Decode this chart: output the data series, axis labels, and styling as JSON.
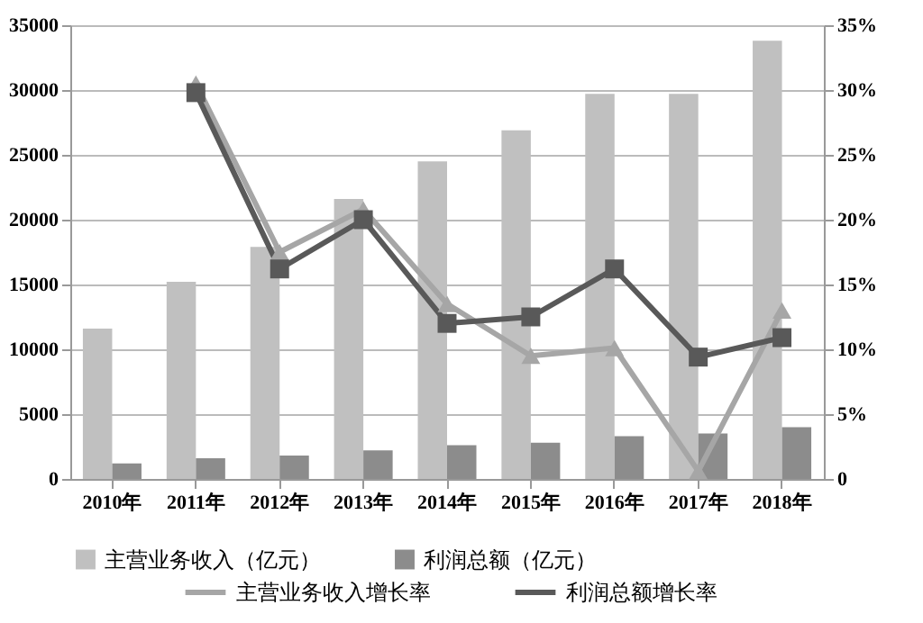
{
  "chart_data": {
    "type": "bar",
    "categories": [
      "2010年",
      "2011年",
      "2012年",
      "2013年",
      "2014年",
      "2015年",
      "2016年",
      "2017年",
      "2018年"
    ],
    "series": [
      {
        "name": "主营业务收入（亿元）",
        "color": "#c0c0c0",
        "values": [
          11600,
          15200,
          17900,
          21600,
          24500,
          26900,
          29700,
          29700,
          33800
        ]
      },
      {
        "name": "利润总额（亿元）",
        "color": "#8c8c8c",
        "values": [
          1200,
          1600,
          1800,
          2200,
          2600,
          2800,
          3300,
          3500,
          4000
        ]
      },
      {
        "name": "主营业务收入增长率",
        "type": "line",
        "axis": "y2",
        "marker": "triangle",
        "color": "#a6a6a6",
        "values": [
          null,
          30.5,
          17.5,
          20.8,
          13.5,
          9.5,
          10.1,
          0.6,
          13.0
        ]
      },
      {
        "name": "利润总额增长率",
        "type": "line",
        "axis": "y2",
        "marker": "square",
        "color": "#595959",
        "values": [
          null,
          29.8,
          16.2,
          20.0,
          12.0,
          12.5,
          16.2,
          9.4,
          10.9
        ]
      }
    ],
    "ylim": [
      0,
      35000
    ],
    "yticks": [
      0,
      5000,
      10000,
      15000,
      20000,
      25000,
      30000,
      35000
    ],
    "y2lim": [
      0,
      35
    ],
    "y2ticks": [
      0,
      {
        "value": 5,
        "label": "5%"
      },
      {
        "value": 10,
        "label": "10%"
      },
      {
        "value": 15,
        "label": "15%"
      },
      {
        "value": 20,
        "label": "20%"
      },
      {
        "value": 25,
        "label": "25%"
      },
      {
        "value": 30,
        "label": "30%"
      },
      {
        "value": 35,
        "label": "35%"
      }
    ],
    "grid": "y",
    "legend": "bottom"
  }
}
